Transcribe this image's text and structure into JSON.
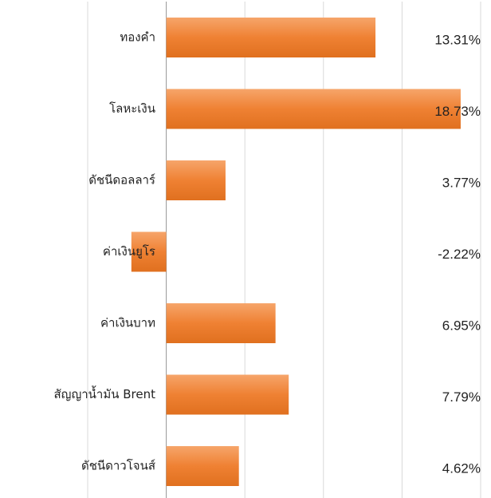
{
  "chart_data": {
    "type": "barh",
    "categories": [
      "ทองคำ",
      "โลหะเงิน",
      "ดัชนีดอลลาร์",
      "ค่าเงินยูโร",
      "ค่าเงินบาท",
      "สัญญาน้ำมัน Brent",
      "ดัชนีดาวโจนส์"
    ],
    "values": [
      13.31,
      18.73,
      3.77,
      -2.22,
      6.95,
      7.79,
      4.62
    ],
    "value_labels": [
      "13.31%",
      "18.73%",
      "3.77%",
      "-2.22%",
      "6.95%",
      "7.79%",
      "4.62%"
    ],
    "color": "#ef8133",
    "xlim": [
      -5,
      20
    ],
    "xticks": [
      -5,
      0,
      5,
      10,
      15,
      20
    ],
    "grid": true
  }
}
